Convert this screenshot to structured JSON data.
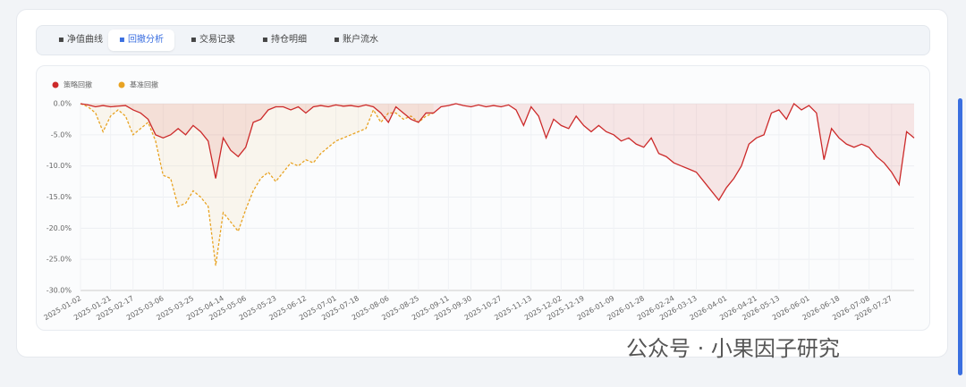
{
  "tabs": {
    "items": [
      "净值曲线",
      "回撤分析",
      "交易记录",
      "持仓明细",
      "账户流水"
    ],
    "active": 1
  },
  "watermark": "公众号 · 小果因子研究",
  "chart_data": {
    "type": "line",
    "categories": [
      "2025-01-02",
      null,
      null,
      null,
      "2025-01-21",
      null,
      null,
      "2025-02-17",
      null,
      null,
      null,
      "2025-03-06",
      null,
      null,
      null,
      "2025-03-25",
      null,
      null,
      null,
      "2025-04-14",
      null,
      null,
      "2025-05-06",
      null,
      null,
      null,
      "2025-05-23",
      null,
      null,
      null,
      "2025-06-12",
      null,
      null,
      null,
      "2025-07-01",
      null,
      null,
      "2025-07-18",
      null,
      null,
      null,
      "2025-08-06",
      null,
      null,
      null,
      "2025-08-25",
      null,
      null,
      null,
      "2025-09-11",
      null,
      null,
      "2025-09-30",
      null,
      null,
      null,
      "2025-10-27",
      null,
      null,
      null,
      "2025-11-13",
      null,
      null,
      null,
      "2025-12-02",
      null,
      null,
      "2025-12-19",
      null,
      null,
      null,
      "2026-01-09",
      null,
      null,
      null,
      "2026-01-28",
      null,
      null,
      null,
      "2026-02-24",
      null,
      null,
      "2026-03-13",
      null,
      null,
      null,
      "2026-04-01",
      null,
      null,
      null,
      "2026-04-21",
      null,
      null,
      "2026-05-13",
      null,
      null,
      null,
      "2026-06-01",
      null,
      null,
      null,
      "2026-06-18",
      null,
      null,
      null,
      "2026-07-08",
      null,
      null,
      "2026-07-27",
      null,
      null,
      null
    ],
    "series": [
      {
        "name": "策略回撤",
        "color": "#cc2a2a",
        "fill": "rgba(220,80,70,0.13)",
        "dashed": false,
        "values": [
          0,
          -0.2,
          -0.5,
          -0.3,
          -0.5,
          -0.4,
          -0.3,
          -1.0,
          -1.5,
          -2.5,
          -5.0,
          -5.5,
          -5.0,
          -4.0,
          -5.0,
          -3.5,
          -4.5,
          -6.0,
          -12.0,
          -5.5,
          -7.5,
          -8.5,
          -7.0,
          -3.0,
          -2.5,
          -1.0,
          -0.5,
          -0.5,
          -1.0,
          -0.5,
          -1.5,
          -0.5,
          -0.3,
          -0.5,
          -0.2,
          -0.4,
          -0.3,
          -0.5,
          -0.2,
          -0.5,
          -1.5,
          -3.0,
          -0.5,
          -1.5,
          -2.5,
          -3.0,
          -1.5,
          -1.5,
          -0.5,
          -0.3,
          0,
          -0.3,
          -0.5,
          -0.2,
          -0.5,
          -0.3,
          -0.5,
          -0.2,
          -1.0,
          -3.5,
          -0.5,
          -2.0,
          -5.5,
          -2.5,
          -3.5,
          -4.0,
          -2.0,
          -3.5,
          -4.5,
          -3.5,
          -4.5,
          -5.0,
          -6.0,
          -5.5,
          -6.5,
          -7.0,
          -5.5,
          -8.0,
          -8.5,
          -9.5,
          -10.0,
          -10.5,
          -11.0,
          -12.5,
          -14.0,
          -15.5,
          -13.5,
          -12.0,
          -10.0,
          -6.5,
          -5.5,
          -5.0,
          -1.5,
          -1.0,
          -2.5,
          0,
          -1.0,
          -0.3,
          -1.5,
          -9.0,
          -4.0,
          -5.5,
          -6.5,
          -7.0,
          -6.5,
          -7.0,
          -8.5,
          -9.5,
          -11.0,
          -13.0,
          -4.5,
          -5.5
        ]
      },
      {
        "name": "基准回撤",
        "color": "#e8a323",
        "fill": "rgba(240,200,120,0.12)",
        "dashed": true,
        "values": [
          0,
          -0.5,
          -1.5,
          -4.5,
          -2.0,
          -1.0,
          -2.0,
          -5.0,
          -4.0,
          -3.0,
          -6.0,
          -11.5,
          -12.0,
          -16.5,
          -16.0,
          -14.0,
          -15.0,
          -16.5,
          -26.0,
          -17.5,
          -19.0,
          -20.5,
          -17.0,
          -14.0,
          -12.0,
          -11.0,
          -12.5,
          -11.0,
          -9.5,
          -10.0,
          -9.0,
          -9.5,
          -8.0,
          -7.0,
          -6.0,
          -5.5,
          -5.0,
          -4.5,
          -4.0,
          -1.0,
          -3.0,
          -1.5,
          -1.5,
          -2.5,
          -2.0,
          -3.0,
          -2.0,
          -1.5,
          null,
          null,
          null,
          null,
          null,
          null,
          null,
          null,
          null,
          null,
          null,
          null,
          null,
          null,
          null,
          null,
          null,
          null,
          null,
          null,
          null,
          null,
          null,
          null,
          null,
          null,
          null,
          null,
          null,
          null,
          null,
          null,
          null,
          null,
          null,
          null,
          null,
          null,
          null,
          null,
          null,
          null,
          null,
          null,
          null,
          null,
          null,
          null,
          null,
          null,
          null,
          null,
          null,
          null,
          null,
          null,
          null,
          null,
          null,
          null,
          null,
          null,
          null,
          null
        ]
      }
    ],
    "ylim": [
      -30,
      0
    ],
    "yticks": [
      {
        "value": 0,
        "label": "0.0%"
      },
      {
        "value": -5,
        "label": "-5.0%"
      },
      {
        "value": -10,
        "label": "-10.0%"
      },
      {
        "value": -15,
        "label": "-15.0%"
      },
      {
        "value": -20,
        "label": "-20.0%"
      },
      {
        "value": -25,
        "label": "-25.0%"
      },
      {
        "value": -30,
        "label": "-30.0%"
      }
    ],
    "grid": true,
    "legend": "top-left"
  }
}
